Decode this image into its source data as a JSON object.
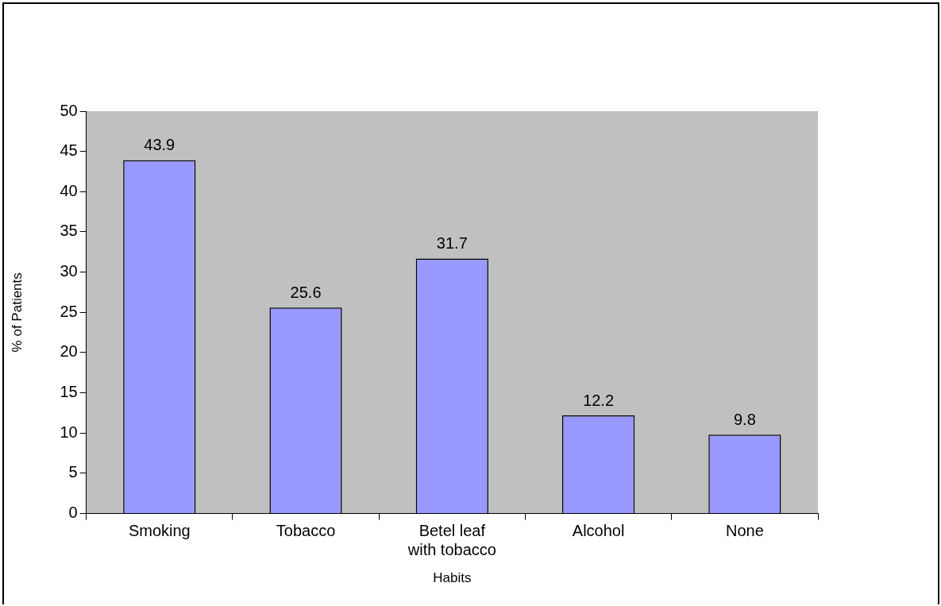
{
  "chart_data": {
    "type": "bar",
    "xlabel": "Habits",
    "ylabel": "% of Patients",
    "categories": [
      "Smoking",
      "Tobacco",
      "Betel leaf with tobacco",
      "Alcohol",
      "None"
    ],
    "values": [
      43.9,
      25.6,
      31.7,
      12.2,
      9.8
    ],
    "color": "#9999ff",
    "ylim": [
      0,
      50
    ],
    "yticks": [
      0,
      5,
      10,
      15,
      20,
      25,
      30,
      35,
      40,
      45,
      50
    ],
    "data_labels": true
  }
}
